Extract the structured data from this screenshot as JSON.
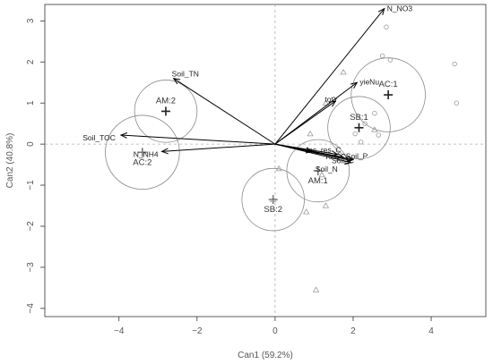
{
  "chart_data": {
    "type": "scatter",
    "subtype": "canonical biplot",
    "title": "",
    "xlabel": "Can1 (59.2%)",
    "ylabel": "Can2 (40.8%)",
    "xlim": [
      -5.9,
      5.4
    ],
    "ylim": [
      -4.2,
      3.4
    ],
    "xticks": [
      -4,
      -2,
      0,
      2,
      4
    ],
    "yticks": [
      -4,
      -3,
      -2,
      -1,
      0,
      1,
      2,
      3
    ],
    "reference_lines": "dashed at x=0 and y=0",
    "grid": false,
    "legend": "none",
    "colors": {
      "vector": "#000000",
      "group": "#808080",
      "point": "#999999",
      "axis": "#555555"
    },
    "vectors": [
      {
        "label": "N_NO3",
        "x": 2.8,
        "y": 3.3
      },
      {
        "label": "Soil_TN",
        "x": -2.6,
        "y": 1.6
      },
      {
        "label": "yieNu",
        "x": 2.1,
        "y": 1.5
      },
      {
        "label": "totY",
        "x": 1.55,
        "y": 1.05
      },
      {
        "label": "Soil_TOC",
        "x": -3.95,
        "y": 0.22
      },
      {
        "label": "N_NH4",
        "x": -2.9,
        "y": -0.18
      },
      {
        "label": "inc_res_C",
        "x": 0.95,
        "y": -0.18
      },
      {
        "label": "",
        "x": 1.6,
        "y": -0.25
      },
      {
        "label": "",
        "x": 1.75,
        "y": -0.32
      },
      {
        "label": "",
        "x": 2.0,
        "y": -0.38
      },
      {
        "label": "Soil_P",
        "x": 1.95,
        "y": -0.4
      },
      {
        "label": "Soil_N",
        "x": 1.95,
        "y": -0.45
      }
    ],
    "overlapping_vector_labels": [
      "res_C",
      "Soil_C"
    ],
    "groups": [
      {
        "label": "AC:1",
        "x": 2.9,
        "y": 1.2,
        "radius": 0.95
      },
      {
        "label": "AC:2",
        "x": -3.4,
        "y": -0.2,
        "radius": 0.95
      },
      {
        "label": "AM:1",
        "x": 1.1,
        "y": -0.65,
        "radius": 0.8
      },
      {
        "label": "AM:2",
        "x": -2.8,
        "y": 0.8,
        "radius": 0.8
      },
      {
        "label": "SB:1",
        "x": 2.15,
        "y": 0.4,
        "radius": 0.8
      },
      {
        "label": "SB:2",
        "x": -0.05,
        "y": -1.35,
        "radius": 0.8
      }
    ],
    "points_circle": [
      {
        "x": 2.85,
        "y": 2.85
      },
      {
        "x": 2.75,
        "y": 2.15
      },
      {
        "x": 2.95,
        "y": 2.05
      },
      {
        "x": 4.6,
        "y": 1.95
      },
      {
        "x": 4.65,
        "y": 1.0
      },
      {
        "x": 2.55,
        "y": 0.75
      },
      {
        "x": 2.3,
        "y": 0.5
      },
      {
        "x": 2.05,
        "y": 0.25
      },
      {
        "x": 2.65,
        "y": 0.22
      },
      {
        "x": 2.2,
        "y": 0.05
      }
    ],
    "points_triangle": [
      {
        "x": 1.75,
        "y": 1.75
      },
      {
        "x": 1.3,
        "y": 1.0
      },
      {
        "x": 0.9,
        "y": 0.25
      },
      {
        "x": 2.55,
        "y": 0.35
      },
      {
        "x": 0.1,
        "y": -0.6
      },
      {
        "x": 1.2,
        "y": -0.75
      },
      {
        "x": 1.3,
        "y": -1.5
      },
      {
        "x": 0.8,
        "y": -1.65
      },
      {
        "x": 1.05,
        "y": -3.55
      },
      {
        "x": -0.05,
        "y": -1.35
      }
    ]
  }
}
